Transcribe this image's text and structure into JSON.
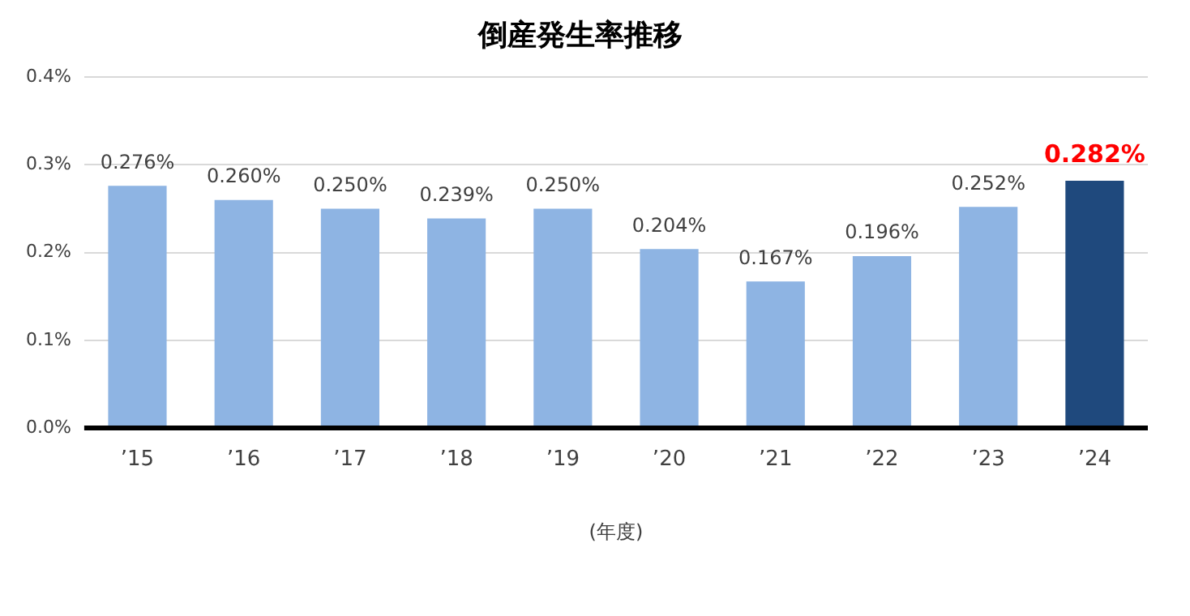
{
  "chart_data": {
    "type": "bar",
    "title": "倒産発生率推移",
    "xlabel": "(年度)",
    "categories": [
      "’15",
      "’16",
      "’17",
      "’18",
      "’19",
      "’20",
      "’21",
      "’22",
      "’23",
      "’24"
    ],
    "values": [
      0.276,
      0.26,
      0.25,
      0.239,
      0.25,
      0.204,
      0.167,
      0.196,
      0.252,
      0.282
    ],
    "value_labels": [
      "0.276%",
      "0.260%",
      "0.250%",
      "0.239%",
      "0.250%",
      "0.204%",
      "0.167%",
      "0.196%",
      "0.252%",
      "0.282%"
    ],
    "colors": [
      "#8eb4e3",
      "#8eb4e3",
      "#8eb4e3",
      "#8eb4e3",
      "#8eb4e3",
      "#8eb4e3",
      "#8eb4e3",
      "#8eb4e3",
      "#8eb4e3",
      "#1f497d"
    ],
    "ylim": [
      0,
      0.4
    ],
    "yticks": [
      {
        "value": 0,
        "label": "0.0%"
      },
      {
        "value": 0.1,
        "label": "0.1%"
      },
      {
        "value": 0.2,
        "label": "0.2%"
      },
      {
        "value": 0.3,
        "label": "0.3%"
      },
      {
        "value": 0.4,
        "label": "0.4%"
      }
    ],
    "grid": "y",
    "legend": false
  }
}
